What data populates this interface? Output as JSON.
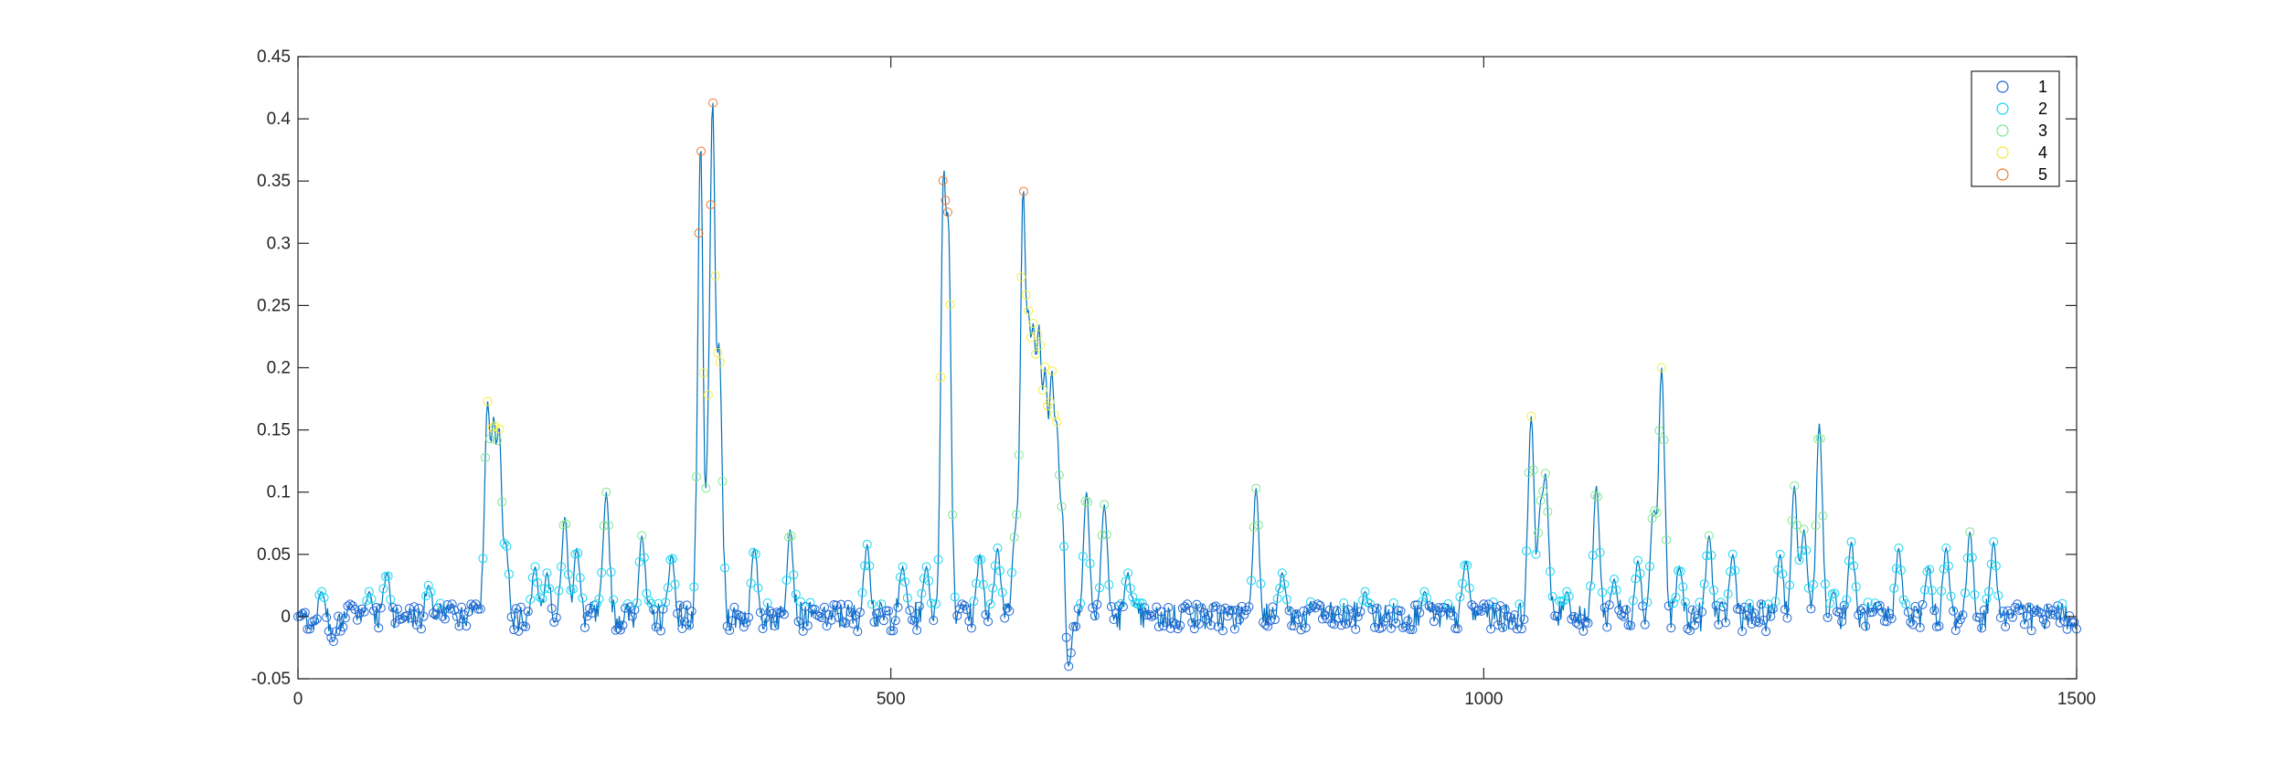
{
  "chart_data": {
    "type": "line",
    "title": "",
    "xlabel": "",
    "ylabel": "",
    "xlim": [
      0,
      1500
    ],
    "ylim": [
      -0.05,
      0.45
    ],
    "x_ticks": [
      0,
      500,
      1000,
      1500
    ],
    "x_tick_labels": [
      "0",
      "500",
      "1000",
      "1500"
    ],
    "y_ticks": [
      -0.05,
      0,
      0.05,
      0.1,
      0.15,
      0.2,
      0.25,
      0.3,
      0.35,
      0.4,
      0.45
    ],
    "y_tick_labels": [
      "-0.05",
      "0",
      "0.05",
      "0.1",
      "0.15",
      "0.2",
      "0.25",
      "0.3",
      "0.35",
      "0.4",
      "0.45"
    ],
    "grid": false,
    "legend_position": "top-right",
    "line_color": "#0072bd",
    "legend": [
      {
        "label": "1",
        "color": "#1f66d6"
      },
      {
        "label": "2",
        "color": "#13d6f0"
      },
      {
        "label": "3",
        "color": "#7ee68f"
      },
      {
        "label": "4",
        "color": "#f2ee3a"
      },
      {
        "label": "5",
        "color": "#f07a32"
      }
    ],
    "peaks": [
      [
        0,
        0.0
      ],
      [
        10,
        -0.01
      ],
      [
        20,
        0.02
      ],
      [
        30,
        -0.02
      ],
      [
        45,
        0.01
      ],
      [
        60,
        0.02
      ],
      [
        75,
        0.035
      ],
      [
        90,
        0.0
      ],
      [
        110,
        0.025
      ],
      [
        130,
        0.01
      ],
      [
        150,
        0.01
      ],
      [
        160,
        0.175
      ],
      [
        165,
        0.16
      ],
      [
        170,
        0.165
      ],
      [
        175,
        0.06
      ],
      [
        200,
        0.04
      ],
      [
        210,
        0.035
      ],
      [
        225,
        0.08
      ],
      [
        235,
        0.055
      ],
      [
        260,
        0.1
      ],
      [
        290,
        0.065
      ],
      [
        315,
        0.05
      ],
      [
        340,
        0.42
      ],
      [
        345,
        0.08
      ],
      [
        350,
        0.443
      ],
      [
        355,
        0.22
      ],
      [
        385,
        0.055
      ],
      [
        415,
        0.07
      ],
      [
        440,
        0.0
      ],
      [
        480,
        0.058
      ],
      [
        510,
        0.04
      ],
      [
        530,
        0.04
      ],
      [
        545,
        0.39
      ],
      [
        548,
        0.325
      ],
      [
        560,
        0.01
      ],
      [
        575,
        0.05
      ],
      [
        590,
        0.055
      ],
      [
        605,
        0.07
      ],
      [
        612,
        0.377
      ],
      [
        616,
        0.25
      ],
      [
        620,
        0.235
      ],
      [
        625,
        0.24
      ],
      [
        630,
        0.2
      ],
      [
        636,
        0.21
      ],
      [
        640,
        0.165
      ],
      [
        645,
        0.1
      ],
      [
        650,
        -0.04
      ],
      [
        665,
        0.1
      ],
      [
        680,
        0.09
      ],
      [
        700,
        0.035
      ],
      [
        720,
        0.0
      ],
      [
        750,
        0.01
      ],
      [
        800,
        0.005
      ],
      [
        808,
        0.103
      ],
      [
        830,
        0.035
      ],
      [
        860,
        0.01
      ],
      [
        900,
        0.02
      ],
      [
        950,
        0.02
      ],
      [
        985,
        0.045
      ],
      [
        1000,
        0.01
      ],
      [
        1040,
        0.161
      ],
      [
        1048,
        0.085
      ],
      [
        1052,
        0.115
      ],
      [
        1070,
        0.02
      ],
      [
        1095,
        0.105
      ],
      [
        1110,
        0.03
      ],
      [
        1130,
        0.045
      ],
      [
        1143,
        0.085
      ],
      [
        1150,
        0.2
      ],
      [
        1165,
        0.04
      ],
      [
        1190,
        0.065
      ],
      [
        1210,
        0.05
      ],
      [
        1250,
        0.05
      ],
      [
        1262,
        0.105
      ],
      [
        1270,
        0.07
      ],
      [
        1283,
        0.155
      ],
      [
        1295,
        0.02
      ],
      [
        1310,
        0.06
      ],
      [
        1350,
        0.055
      ],
      [
        1375,
        0.04
      ],
      [
        1390,
        0.055
      ],
      [
        1410,
        0.068
      ],
      [
        1430,
        0.06
      ],
      [
        1450,
        0.01
      ],
      [
        1480,
        0.005
      ],
      [
        1500,
        -0.01
      ]
    ],
    "peak_width": 2.5,
    "noise": {
      "seed": 7,
      "points": 1500,
      "amplitude": 0.012
    }
  }
}
